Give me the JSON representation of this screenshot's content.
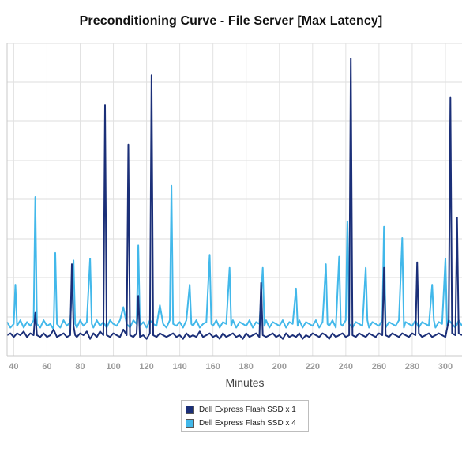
{
  "chart_data": {
    "type": "line",
    "title": "Preconditioning Curve - File Server [Max Latency]",
    "xlabel": "Minutes",
    "ylabel": "",
    "xlim": [
      36,
      310
    ],
    "ylim": [
      -7,
      160
    ],
    "xticks": [
      40,
      60,
      80,
      100,
      120,
      140,
      160,
      180,
      200,
      220,
      240,
      260,
      280,
      300
    ],
    "grid": true,
    "legend_position": "bottom-center",
    "series": [
      {
        "name": "Dell Express Flash SSD x 1",
        "color": "#1b2f78",
        "points": [
          [
            36,
            4
          ],
          [
            38,
            5
          ],
          [
            40,
            3
          ],
          [
            42,
            5
          ],
          [
            44,
            4
          ],
          [
            46,
            6
          ],
          [
            48,
            3
          ],
          [
            50,
            5
          ],
          [
            52,
            4
          ],
          [
            53,
            16
          ],
          [
            54,
            4
          ],
          [
            56,
            3
          ],
          [
            58,
            5
          ],
          [
            60,
            3
          ],
          [
            62,
            4
          ],
          [
            64,
            7
          ],
          [
            66,
            3
          ],
          [
            68,
            4
          ],
          [
            70,
            5
          ],
          [
            72,
            3
          ],
          [
            74,
            4
          ],
          [
            75,
            42
          ],
          [
            76,
            9
          ],
          [
            77,
            4
          ],
          [
            78,
            3
          ],
          [
            80,
            5
          ],
          [
            82,
            4
          ],
          [
            84,
            6
          ],
          [
            86,
            2
          ],
          [
            88,
            5
          ],
          [
            90,
            3
          ],
          [
            92,
            6
          ],
          [
            94,
            4
          ],
          [
            95,
            127
          ],
          [
            96,
            4
          ],
          [
            98,
            3
          ],
          [
            100,
            5
          ],
          [
            102,
            4
          ],
          [
            104,
            3
          ],
          [
            106,
            7
          ],
          [
            108,
            4
          ],
          [
            109,
            106
          ],
          [
            110,
            4
          ],
          [
            112,
            3
          ],
          [
            114,
            5
          ],
          [
            115,
            25
          ],
          [
            116,
            3
          ],
          [
            118,
            4
          ],
          [
            120,
            2
          ],
          [
            122,
            5
          ],
          [
            123,
            143
          ],
          [
            124,
            4
          ],
          [
            126,
            3
          ],
          [
            128,
            5
          ],
          [
            130,
            4
          ],
          [
            132,
            3
          ],
          [
            134,
            4
          ],
          [
            136,
            5
          ],
          [
            138,
            3
          ],
          [
            140,
            4
          ],
          [
            142,
            2
          ],
          [
            144,
            5
          ],
          [
            146,
            3
          ],
          [
            148,
            4
          ],
          [
            150,
            3
          ],
          [
            152,
            6
          ],
          [
            154,
            3
          ],
          [
            156,
            4
          ],
          [
            158,
            5
          ],
          [
            160,
            3
          ],
          [
            162,
            4
          ],
          [
            164,
            2
          ],
          [
            166,
            5
          ],
          [
            168,
            3
          ],
          [
            170,
            4
          ],
          [
            172,
            5
          ],
          [
            174,
            3
          ],
          [
            176,
            4
          ],
          [
            178,
            2
          ],
          [
            180,
            5
          ],
          [
            182,
            3
          ],
          [
            184,
            4
          ],
          [
            186,
            5
          ],
          [
            188,
            3
          ],
          [
            189,
            32
          ],
          [
            190,
            4
          ],
          [
            192,
            3
          ],
          [
            194,
            4
          ],
          [
            196,
            5
          ],
          [
            198,
            3
          ],
          [
            200,
            4
          ],
          [
            202,
            2
          ],
          [
            204,
            5
          ],
          [
            206,
            3
          ],
          [
            208,
            4
          ],
          [
            210,
            3
          ],
          [
            212,
            5
          ],
          [
            214,
            2
          ],
          [
            216,
            4
          ],
          [
            218,
            3
          ],
          [
            220,
            5
          ],
          [
            222,
            4
          ],
          [
            224,
            3
          ],
          [
            226,
            5
          ],
          [
            228,
            4
          ],
          [
            230,
            2
          ],
          [
            232,
            5
          ],
          [
            234,
            3
          ],
          [
            236,
            4
          ],
          [
            238,
            5
          ],
          [
            240,
            3
          ],
          [
            242,
            4
          ],
          [
            243,
            152
          ],
          [
            244,
            4
          ],
          [
            246,
            3
          ],
          [
            248,
            5
          ],
          [
            250,
            4
          ],
          [
            252,
            3
          ],
          [
            254,
            5
          ],
          [
            256,
            4
          ],
          [
            258,
            3
          ],
          [
            260,
            5
          ],
          [
            262,
            4
          ],
          [
            263,
            40
          ],
          [
            264,
            4
          ],
          [
            266,
            3
          ],
          [
            268,
            5
          ],
          [
            270,
            4
          ],
          [
            272,
            3
          ],
          [
            274,
            5
          ],
          [
            276,
            4
          ],
          [
            278,
            3
          ],
          [
            280,
            5
          ],
          [
            282,
            4
          ],
          [
            283,
            43
          ],
          [
            284,
            5
          ],
          [
            286,
            3
          ],
          [
            288,
            4
          ],
          [
            290,
            5
          ],
          [
            292,
            3
          ],
          [
            294,
            4
          ],
          [
            296,
            5
          ],
          [
            298,
            4
          ],
          [
            300,
            3
          ],
          [
            302,
            12
          ],
          [
            303,
            131
          ],
          [
            304,
            5
          ],
          [
            306,
            4
          ],
          [
            307,
            67
          ],
          [
            308,
            5
          ],
          [
            310,
            4
          ]
        ]
      },
      {
        "name": "Dell Express Flash SSD x 4",
        "color": "#42b8ea",
        "points": [
          [
            36,
            11
          ],
          [
            38,
            8
          ],
          [
            40,
            10
          ],
          [
            41,
            31
          ],
          [
            42,
            9
          ],
          [
            44,
            12
          ],
          [
            46,
            8
          ],
          [
            48,
            11
          ],
          [
            50,
            9
          ],
          [
            52,
            12
          ],
          [
            53,
            78
          ],
          [
            54,
            10
          ],
          [
            56,
            8
          ],
          [
            58,
            12
          ],
          [
            60,
            9
          ],
          [
            62,
            10
          ],
          [
            64,
            7
          ],
          [
            65,
            48
          ],
          [
            66,
            10
          ],
          [
            68,
            8
          ],
          [
            70,
            12
          ],
          [
            72,
            9
          ],
          [
            74,
            11
          ],
          [
            76,
            44
          ],
          [
            77,
            10
          ],
          [
            78,
            8
          ],
          [
            80,
            12
          ],
          [
            82,
            9
          ],
          [
            84,
            11
          ],
          [
            86,
            45
          ],
          [
            87,
            10
          ],
          [
            88,
            8
          ],
          [
            90,
            12
          ],
          [
            92,
            9
          ],
          [
            94,
            11
          ],
          [
            96,
            8
          ],
          [
            98,
            12
          ],
          [
            100,
            10
          ],
          [
            102,
            9
          ],
          [
            104,
            12
          ],
          [
            106,
            19
          ],
          [
            108,
            10
          ],
          [
            110,
            8
          ],
          [
            112,
            12
          ],
          [
            114,
            10
          ],
          [
            115,
            52
          ],
          [
            116,
            9
          ],
          [
            118,
            11
          ],
          [
            120,
            8
          ],
          [
            122,
            12
          ],
          [
            124,
            10
          ],
          [
            126,
            9
          ],
          [
            128,
            20
          ],
          [
            130,
            10
          ],
          [
            132,
            8
          ],
          [
            134,
            12
          ],
          [
            135,
            84
          ],
          [
            136,
            10
          ],
          [
            138,
            9
          ],
          [
            140,
            11
          ],
          [
            142,
            8
          ],
          [
            144,
            12
          ],
          [
            146,
            31
          ],
          [
            147,
            10
          ],
          [
            148,
            9
          ],
          [
            150,
            12
          ],
          [
            152,
            8
          ],
          [
            154,
            10
          ],
          [
            156,
            11
          ],
          [
            158,
            47
          ],
          [
            159,
            10
          ],
          [
            160,
            9
          ],
          [
            162,
            12
          ],
          [
            164,
            8
          ],
          [
            166,
            11
          ],
          [
            168,
            10
          ],
          [
            170,
            40
          ],
          [
            171,
            9
          ],
          [
            172,
            12
          ],
          [
            174,
            8
          ],
          [
            176,
            11
          ],
          [
            178,
            10
          ],
          [
            180,
            9
          ],
          [
            182,
            12
          ],
          [
            184,
            8
          ],
          [
            186,
            11
          ],
          [
            188,
            10
          ],
          [
            190,
            40
          ],
          [
            191,
            9
          ],
          [
            192,
            12
          ],
          [
            194,
            8
          ],
          [
            196,
            11
          ],
          [
            198,
            10
          ],
          [
            200,
            9
          ],
          [
            202,
            12
          ],
          [
            204,
            8
          ],
          [
            206,
            11
          ],
          [
            208,
            10
          ],
          [
            210,
            29
          ],
          [
            211,
            9
          ],
          [
            212,
            12
          ],
          [
            214,
            8
          ],
          [
            216,
            11
          ],
          [
            218,
            10
          ],
          [
            220,
            9
          ],
          [
            222,
            12
          ],
          [
            224,
            8
          ],
          [
            226,
            11
          ],
          [
            228,
            42
          ],
          [
            229,
            10
          ],
          [
            230,
            9
          ],
          [
            232,
            12
          ],
          [
            234,
            8
          ],
          [
            236,
            46
          ],
          [
            237,
            10
          ],
          [
            238,
            9
          ],
          [
            240,
            12
          ],
          [
            241,
            65
          ],
          [
            242,
            10
          ],
          [
            244,
            8
          ],
          [
            246,
            11
          ],
          [
            248,
            10
          ],
          [
            250,
            9
          ],
          [
            252,
            40
          ],
          [
            253,
            12
          ],
          [
            254,
            8
          ],
          [
            256,
            11
          ],
          [
            258,
            10
          ],
          [
            260,
            9
          ],
          [
            262,
            12
          ],
          [
            263,
            62
          ],
          [
            264,
            8
          ],
          [
            266,
            11
          ],
          [
            268,
            10
          ],
          [
            270,
            9
          ],
          [
            272,
            12
          ],
          [
            274,
            56
          ],
          [
            275,
            8
          ],
          [
            276,
            11
          ],
          [
            278,
            10
          ],
          [
            280,
            9
          ],
          [
            282,
            12
          ],
          [
            284,
            8
          ],
          [
            286,
            11
          ],
          [
            288,
            10
          ],
          [
            290,
            9
          ],
          [
            292,
            31
          ],
          [
            293,
            12
          ],
          [
            294,
            8
          ],
          [
            296,
            11
          ],
          [
            298,
            10
          ],
          [
            300,
            45
          ],
          [
            301,
            9
          ],
          [
            302,
            12
          ],
          [
            304,
            10
          ],
          [
            306,
            8
          ],
          [
            308,
            12
          ],
          [
            310,
            9
          ]
        ]
      }
    ]
  }
}
